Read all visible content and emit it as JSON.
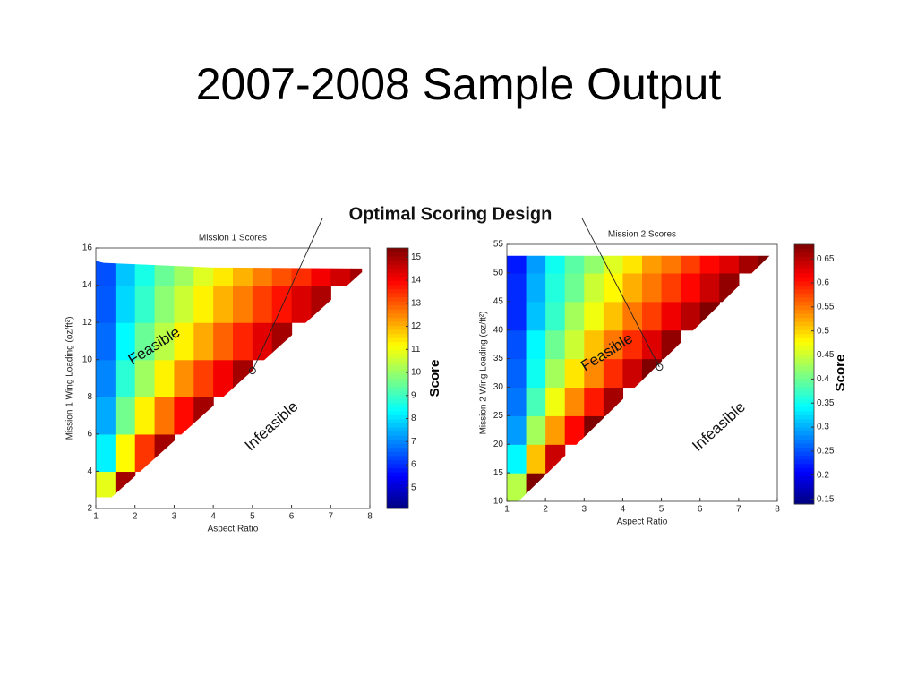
{
  "title": "2007-2008 Sample Output",
  "callout": "Optimal Scoring Design",
  "chart_data": [
    {
      "type": "heatmap",
      "title": "Mission 1 Scores",
      "x_label": "Aspect Ratio",
      "y_label": "Mission 1 Wing Loading (oz/ft²)",
      "xlim": [
        1,
        8
      ],
      "ylim": [
        2,
        16
      ],
      "xticks": [
        1,
        2,
        3,
        4,
        5,
        6,
        7,
        8
      ],
      "yticks": [
        2,
        4,
        6,
        8,
        10,
        12,
        14,
        16
      ],
      "colormap": "jet",
      "clim": [
        4.1,
        15.4
      ],
      "cticks": [
        5,
        6,
        7,
        8,
        9,
        10,
        11,
        12,
        13,
        14,
        15
      ],
      "colorbar_label": "Score",
      "x": [
        1.25,
        1.75,
        2.25,
        2.75,
        3.25,
        3.75,
        4.25,
        4.75,
        5.25,
        5.75,
        6.25,
        6.75,
        7.25,
        7.75
      ],
      "y": [
        3,
        5,
        7,
        9,
        11,
        13,
        15
      ],
      "values": [
        [
          10.9,
          15,
          null,
          null,
          null,
          null,
          null,
          null,
          null,
          null,
          null,
          null,
          null,
          null
        ],
        [
          8.2,
          11.2,
          13.4,
          15,
          null,
          null,
          null,
          null,
          null,
          null,
          null,
          null,
          null,
          null
        ],
        [
          7.4,
          9.6,
          11.3,
          12.7,
          13.9,
          15,
          null,
          null,
          null,
          null,
          null,
          null,
          null,
          null
        ],
        [
          7.0,
          8.8,
          10.1,
          11.3,
          12.4,
          13.3,
          14.1,
          15,
          null,
          null,
          null,
          null,
          null,
          null
        ],
        [
          6.7,
          8.3,
          9.5,
          10.4,
          11.3,
          12.1,
          12.9,
          13.6,
          14.3,
          15.0,
          null,
          null,
          null,
          null
        ],
        [
          6.5,
          7.9,
          8.9,
          9.9,
          10.6,
          11.3,
          12.0,
          12.6,
          13.3,
          13.8,
          14.4,
          14.9,
          null,
          null
        ],
        [
          6.4,
          7.7,
          8.6,
          9.5,
          10.1,
          10.8,
          11.4,
          12.0,
          12.6,
          13.1,
          13.5,
          14.1,
          14.5,
          15.0
        ]
      ],
      "feasible_region": {
        "x": [
          1,
          1.4,
          7.8,
          7.8,
          4,
          1.2,
          1
        ],
        "y": [
          2.6,
          2.6,
          14.7,
          14.9,
          14.95,
          15.2,
          15.3
        ]
      },
      "optimum": {
        "x": 5,
        "y": 9.4
      },
      "annotations": [
        "Feasible",
        "Infeasible"
      ]
    },
    {
      "type": "heatmap",
      "title": "Mission 2 Scores",
      "x_label": "Aspect Ratio",
      "y_label": "Mission 2 Wing Loading (oz/ft²)",
      "xlim": [
        1,
        8
      ],
      "ylim": [
        10,
        55
      ],
      "xticks": [
        1,
        2,
        3,
        4,
        5,
        6,
        7,
        8
      ],
      "yticks": [
        10,
        15,
        20,
        25,
        30,
        35,
        40,
        45,
        50,
        55
      ],
      "colormap": "jet",
      "clim": [
        0.14,
        0.68
      ],
      "cticks": [
        0.15,
        0.2,
        0.25,
        0.3,
        0.35,
        0.4,
        0.45,
        0.5,
        0.55,
        0.6,
        0.65
      ],
      "colorbar_label": "Score",
      "x": [
        1.25,
        1.75,
        2.25,
        2.75,
        3.25,
        3.75,
        4.25,
        4.75,
        5.25,
        5.75,
        6.25,
        6.75,
        7.25,
        7.75
      ],
      "y": [
        12.5,
        17.5,
        22.5,
        27.5,
        32.5,
        37.5,
        42.5,
        47.5,
        52.5
      ],
      "values": [
        [
          0.44,
          0.68,
          null,
          null,
          null,
          null,
          null,
          null,
          null,
          null,
          null,
          null,
          null,
          null
        ],
        [
          0.34,
          0.51,
          0.64,
          null,
          null,
          null,
          null,
          null,
          null,
          null,
          null,
          null,
          null,
          null
        ],
        [
          0.29,
          0.43,
          0.53,
          0.61,
          0.68,
          null,
          null,
          null,
          null,
          null,
          null,
          null,
          null,
          null
        ],
        [
          0.27,
          0.38,
          0.47,
          0.54,
          0.6,
          0.66,
          null,
          null,
          null,
          null,
          null,
          null,
          null,
          null
        ],
        [
          0.26,
          0.35,
          0.43,
          0.49,
          0.54,
          0.59,
          0.64,
          0.68,
          null,
          null,
          null,
          null,
          null,
          null
        ],
        [
          0.25,
          0.34,
          0.4,
          0.45,
          0.51,
          0.55,
          0.59,
          0.63,
          0.67,
          null,
          null,
          null,
          null,
          null
        ],
        [
          0.23,
          0.31,
          0.37,
          0.43,
          0.47,
          0.51,
          0.55,
          0.58,
          0.62,
          0.65,
          0.68,
          null,
          null,
          null
        ],
        [
          0.23,
          0.3,
          0.36,
          0.4,
          0.45,
          0.48,
          0.52,
          0.55,
          0.58,
          0.61,
          0.64,
          0.67,
          null,
          null
        ],
        [
          0.22,
          0.29,
          0.35,
          0.39,
          0.42,
          0.46,
          0.49,
          0.53,
          0.55,
          0.58,
          0.61,
          0.63,
          0.66,
          0.68
        ]
      ],
      "feasible_region": {
        "x": [
          1,
          1.3,
          7.8,
          1
        ],
        "y": [
          10,
          10,
          53,
          53
        ]
      },
      "optimum": {
        "x": 4.95,
        "y": 33.5
      },
      "annotations": [
        "Feasible",
        "Infeasible"
      ]
    }
  ]
}
